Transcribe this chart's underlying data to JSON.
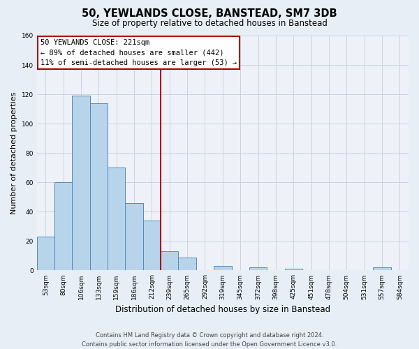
{
  "title": "50, YEWLANDS CLOSE, BANSTEAD, SM7 3DB",
  "subtitle": "Size of property relative to detached houses in Banstead",
  "xlabel": "Distribution of detached houses by size in Banstead",
  "ylabel": "Number of detached properties",
  "categories": [
    "53sqm",
    "80sqm",
    "106sqm",
    "133sqm",
    "159sqm",
    "186sqm",
    "212sqm",
    "239sqm",
    "265sqm",
    "292sqm",
    "319sqm",
    "345sqm",
    "372sqm",
    "398sqm",
    "425sqm",
    "451sqm",
    "478sqm",
    "504sqm",
    "531sqm",
    "557sqm",
    "584sqm"
  ],
  "values": [
    23,
    60,
    119,
    114,
    70,
    46,
    34,
    13,
    9,
    0,
    3,
    0,
    2,
    0,
    1,
    0,
    0,
    0,
    0,
    2,
    0
  ],
  "bar_color": "#b8d4ea",
  "bar_edge_color": "#5588bb",
  "vline_x_index": 6.5,
  "vline_color": "#aa0000",
  "ylim": [
    0,
    160
  ],
  "yticks": [
    0,
    20,
    40,
    60,
    80,
    100,
    120,
    140,
    160
  ],
  "annotation_title": "50 YEWLANDS CLOSE: 221sqm",
  "annotation_line1": "← 89% of detached houses are smaller (442)",
  "annotation_line2": "11% of semi-detached houses are larger (53) →",
  "annotation_box_color": "#ffffff",
  "annotation_box_edge_color": "#aa0000",
  "footer_line1": "Contains HM Land Registry data © Crown copyright and database right 2024.",
  "footer_line2": "Contains public sector information licensed under the Open Government Licence v3.0.",
  "bg_color": "#e8eef5",
  "plot_bg_color": "#eef2f8",
  "grid_color": "#c8d4e0",
  "title_fontsize": 10.5,
  "subtitle_fontsize": 8.5,
  "ylabel_fontsize": 8,
  "xlabel_fontsize": 8.5,
  "tick_fontsize": 6.5,
  "annotation_fontsize": 7.5
}
